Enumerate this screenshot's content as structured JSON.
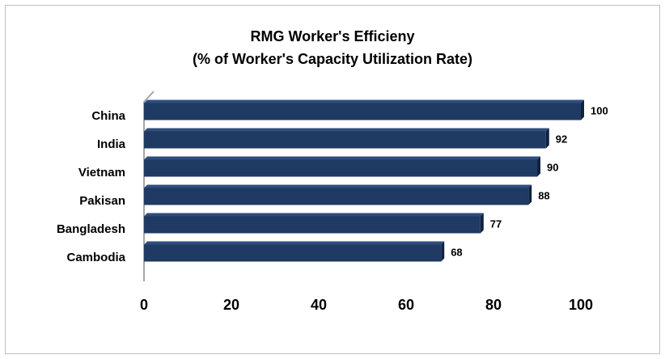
{
  "chart_data": {
    "type": "bar",
    "orientation": "horizontal",
    "title": "RMG Worker's Efficieny",
    "subtitle": "(% of Worker's Capacity Utilization Rate)",
    "categories": [
      "China",
      "India",
      "Vietnam",
      "Pakisan",
      "Bangladesh",
      "Cambodia"
    ],
    "values": [
      100,
      92,
      90,
      88,
      77,
      68
    ],
    "color": "#1f3a63",
    "xlim": [
      0,
      100
    ],
    "xticks": [
      0,
      20,
      40,
      60,
      80,
      100
    ],
    "grid": false
  }
}
